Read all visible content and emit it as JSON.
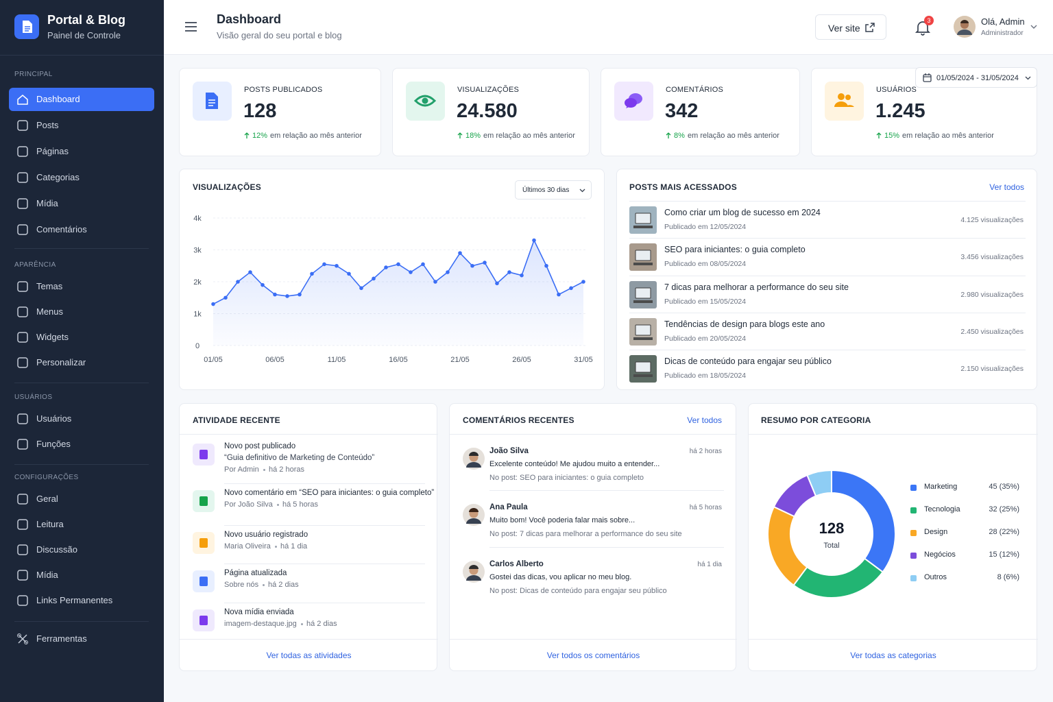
{
  "sidebar": {
    "brand_title": "Portal & Blog",
    "brand_subtitle": "Painel de Controle",
    "sections": [
      {
        "heading": "PRINCIPAL",
        "items": [
          "Dashboard",
          "Posts",
          "Páginas",
          "Categorias",
          "Mídia",
          "Comentários"
        ]
      },
      {
        "heading": "APARÊNCIA",
        "items": [
          "Temas",
          "Menus",
          "Widgets",
          "Personalizar"
        ]
      },
      {
        "heading": "USUÁRIOS",
        "items": [
          "Usuários",
          "Funções"
        ]
      },
      {
        "heading": "CONFIGURAÇÕES",
        "items": [
          "Geral",
          "Leitura",
          "Discussão",
          "Mídia",
          "Links Permanentes"
        ]
      }
    ],
    "footer_item": "Ferramentas"
  },
  "header": {
    "title": "Dashboard",
    "subtitle": "Visão geral do seu portal e blog",
    "view_site": "Ver site",
    "notifications": "3",
    "greeting": "Olá, Admin",
    "role": "Administrador"
  },
  "date_range": "01/05/2024 - 31/05/2024",
  "stats": [
    {
      "label": "POSTS PUBLICADOS",
      "value": "128",
      "change": "12%",
      "change_text": "em relação ao mês anterior"
    },
    {
      "label": "VISUALIZAÇÕES",
      "value": "24.580",
      "change": "18%",
      "change_text": "em relação ao mês anterior"
    },
    {
      "label": "COMENTÁRIOS",
      "value": "342",
      "change": "8%",
      "change_text": "em relação ao mês anterior"
    },
    {
      "label": "USUÁRIOS",
      "value": "1.245",
      "change": "15%",
      "change_text": "em relação ao mês anterior"
    }
  ],
  "chart_data": [
    {
      "type": "line",
      "title": "VISUALIZAÇÕES",
      "filter": "Últimos 30 dias",
      "color": "#3b6ef5",
      "categories": [
        "01/05",
        null,
        null,
        null,
        null,
        "06/05",
        null,
        null,
        null,
        null,
        "11/05",
        null,
        null,
        null,
        null,
        "16/05",
        null,
        null,
        null,
        null,
        "21/05",
        null,
        null,
        null,
        null,
        "26/05",
        null,
        null,
        null,
        null,
        "31/05"
      ],
      "values": [
        1300,
        1500,
        2000,
        2300,
        1900,
        1600,
        1550,
        1600,
        2250,
        2550,
        2500,
        2250,
        1800,
        2100,
        2450,
        2550,
        2300,
        2550,
        2000,
        2300,
        2900,
        2500,
        2600,
        1950,
        2300,
        2200,
        3300,
        2500,
        1600,
        1800,
        2000
      ],
      "ylim": [
        0,
        4000
      ],
      "yticks": [
        0,
        {
          "value": 1000,
          "label": "1k"
        },
        {
          "value": 2000,
          "label": "2k"
        },
        {
          "value": 3000,
          "label": "3k"
        },
        {
          "value": 4000,
          "label": "4k"
        }
      ],
      "grid": true
    },
    {
      "type": "pie",
      "title": "RESUMO POR CATEGORIA",
      "total": 128,
      "total_label": "Total",
      "categories": [
        "Marketing",
        "Tecnologia",
        "Design",
        "Negócios",
        "Outros"
      ],
      "values": [
        45,
        32,
        28,
        15,
        8
      ],
      "value_labels": [
        "45 (35%)",
        "32 (25%)",
        "28 (22%)",
        "15 (12%)",
        "8 (6%)"
      ],
      "colors": [
        "#3b76f6",
        "#22b573",
        "#f9a825",
        "#7c4ddb",
        "#8ecdf4"
      ],
      "footer": "Ver todas as categorias"
    }
  ],
  "top_posts": {
    "title": "POSTS MAIS ACESSADOS",
    "link": "Ver todos",
    "rows": [
      {
        "title": "Como criar um blog de sucesso em 2024",
        "date": "Publicado em 12/05/2024",
        "views": "4.125 visualizações"
      },
      {
        "title": "SEO para iniciantes: o guia completo",
        "date": "Publicado em 08/05/2024",
        "views": "3.456 visualizações"
      },
      {
        "title": "7 dicas para melhorar a performance do seu site",
        "date": "Publicado em 15/05/2024",
        "views": "2.980 visualizações"
      },
      {
        "title": "Tendências de design para blogs este ano",
        "date": "Publicado em 20/05/2024",
        "views": "2.450 visualizações"
      },
      {
        "title": "Dicas de conteúdo para engajar seu público",
        "date": "Publicado em 18/05/2024",
        "views": "2.150 visualizações"
      }
    ]
  },
  "activity": {
    "title": "ATIVIDADE RECENTE",
    "items": [
      {
        "title": "Novo post publicado",
        "detail": "“Guia definitivo de Marketing de Conteúdo”",
        "by": "Por Admin",
        "time": "há 2 horas"
      },
      {
        "title": "Novo comentário em “SEO para iniciantes: o guia completo”",
        "by": "Por João Silva",
        "time": "há 5 horas"
      },
      {
        "title": "Novo usuário registrado",
        "by": "Maria Oliveira",
        "time": "há 1 dia"
      },
      {
        "title": "Página atualizada",
        "by": "Sobre nós",
        "time": "há 2 dias"
      },
      {
        "title": "Nova mídia enviada",
        "by": "imagem-destaque.jpg",
        "time": "há 2 dias"
      }
    ],
    "footer": "Ver todas as atividades"
  },
  "comments": {
    "title": "COMENTÁRIOS RECENTES",
    "link": "Ver todos",
    "items": [
      {
        "name": "João Silva",
        "time": "há 2 horas",
        "text": "Excelente conteúdo! Me ajudou muito a entender...",
        "post": "No post: SEO para iniciantes: o guia completo"
      },
      {
        "name": "Ana Paula",
        "time": "há 5 horas",
        "text": "Muito bom! Você poderia falar mais sobre...",
        "post": "No post: 7 dicas para melhorar a performance do seu site"
      },
      {
        "name": "Carlos Alberto",
        "time": "há 1 dia",
        "text": "Gostei das dicas, vou aplicar no meu blog.",
        "post": "No post: Dicas de conteúdo para engajar seu público"
      }
    ],
    "footer": "Ver todos os comentários"
  }
}
